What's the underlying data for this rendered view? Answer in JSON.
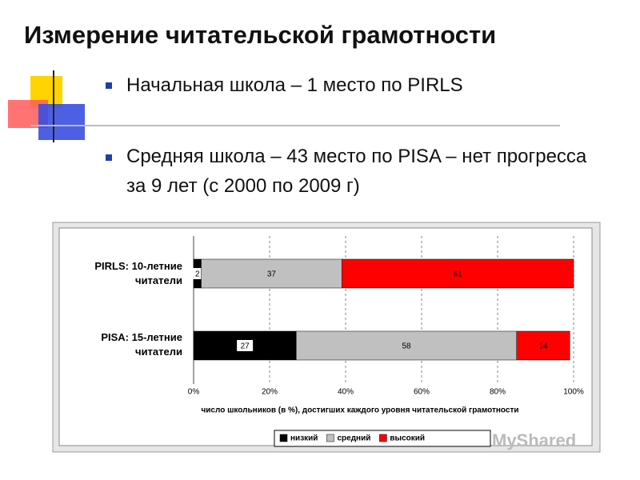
{
  "slide": {
    "title": "Измерение читательской грамотности",
    "bullets": [
      "Начальная школа – 1 место по PIRLS",
      "Средняя школа – 43 место по PISA – нет прогресса за 9 лет (с 2000 по 2009 г)"
    ]
  },
  "chart_data": {
    "type": "stacked_barh",
    "categories": [
      "PIRLS: 10-летние читатели",
      "PISA: 15-летние читатели"
    ],
    "series": [
      {
        "name": "низкий",
        "color": "#000000",
        "values": [
          2,
          27
        ]
      },
      {
        "name": "средний",
        "color": "#c0c0c0",
        "values": [
          37,
          58
        ]
      },
      {
        "name": "высокий",
        "color": "#ff0000",
        "values": [
          61,
          14
        ]
      }
    ],
    "xlim": [
      0,
      100
    ],
    "xticks": [
      {
        "value": 0,
        "label": "0%"
      },
      {
        "value": 20,
        "label": "20%"
      },
      {
        "value": 40,
        "label": "40%"
      },
      {
        "value": 60,
        "label": "60%"
      },
      {
        "value": 80,
        "label": "80%"
      },
      {
        "value": 100,
        "label": "100%"
      }
    ],
    "x_label": "число школьников (в %), достигших каждого уровня читательской грамотности",
    "grid": true,
    "legend": "bottom"
  },
  "watermark": "MyShared"
}
